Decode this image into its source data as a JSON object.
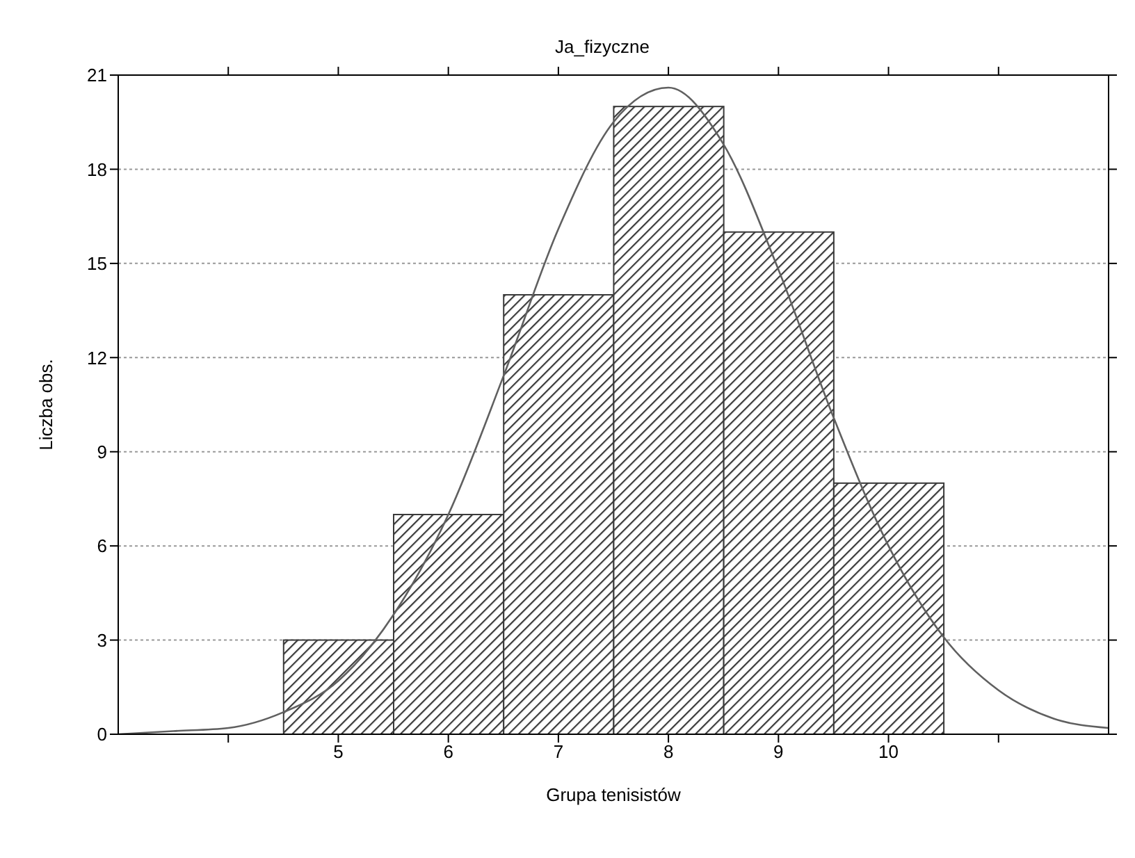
{
  "chart_data": {
    "type": "histogram",
    "title": "Ja_fizyczne",
    "xlabel": "Grupa tenisistów",
    "ylabel": "Liczba obs.",
    "bins": [
      4.5,
      5.5,
      6.5,
      7.5,
      8.5,
      9.5,
      10.5
    ],
    "values": [
      3,
      7,
      14,
      20,
      16,
      8
    ],
    "color": "#3a3a3a",
    "xlim": [
      3,
      12
    ],
    "xticks": [
      {
        "value": 4,
        "label": null
      },
      5,
      6,
      7,
      8,
      9,
      10,
      {
        "value": 11,
        "label": null
      }
    ],
    "ylim": [
      0,
      21
    ],
    "yticks": [
      0,
      3,
      6,
      9,
      12,
      15,
      18,
      21
    ],
    "grid": "y",
    "series": [
      {
        "type": "line",
        "color": "#606060",
        "marker": "none",
        "x": [
          3,
          3.5,
          4,
          4.5,
          5,
          5.5,
          6,
          6.5,
          7,
          7.5,
          8,
          8.5,
          9,
          9.5,
          10,
          10.5,
          11,
          11.5,
          12
        ],
        "values": [
          0.0,
          0.1,
          0.2,
          0.7,
          1.7,
          3.8,
          7.0,
          11.4,
          16.1,
          19.5,
          20.6,
          18.8,
          14.8,
          10.1,
          6.0,
          3.1,
          1.4,
          0.5,
          0.2
        ]
      }
    ]
  }
}
